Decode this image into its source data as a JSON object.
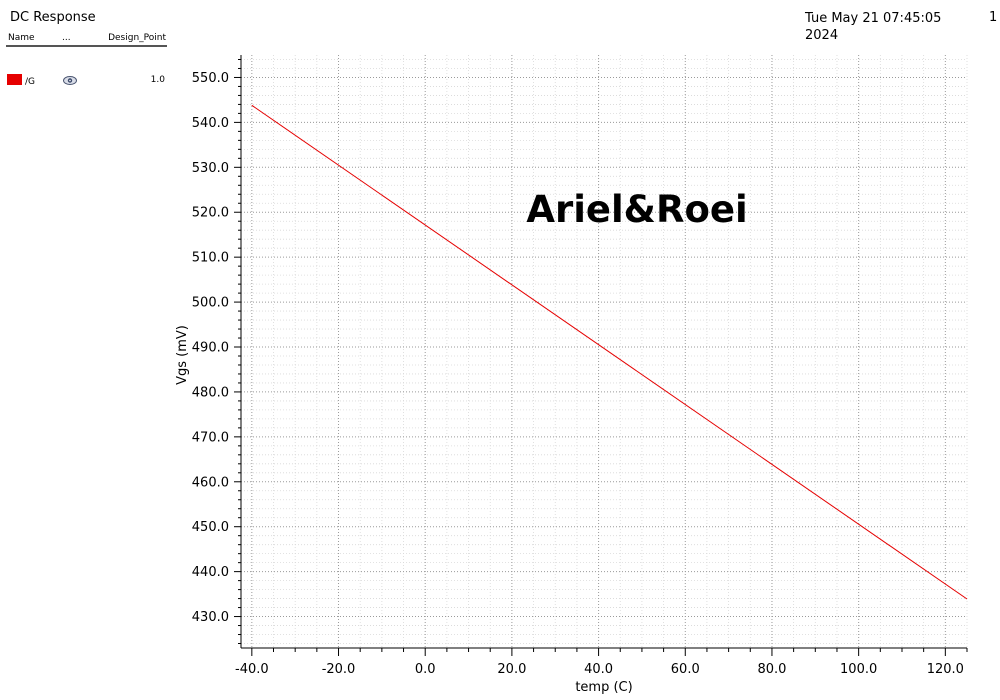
{
  "window": {
    "title": "DC Response",
    "timestamp": "Tue May 21 07:45:05 2024",
    "page": "1"
  },
  "legend": {
    "col_name": "Name",
    "col_more": "...",
    "col_design_point": "Design_Point",
    "rows": [
      {
        "name": "/G",
        "color": "#e60000",
        "visibility_icon": "eye-icon",
        "design_point": "1.0"
      }
    ]
  },
  "chart_data": {
    "type": "line",
    "xlabel": "temp (C)",
    "ylabel": "Vgs (mV)",
    "xlim": [
      -42.5,
      125
    ],
    "ylim": [
      423,
      555
    ],
    "xticks": [
      -40,
      -20,
      0,
      20,
      40,
      60,
      80,
      100,
      120
    ],
    "xtick_labels": [
      "-40.0",
      "-20.0",
      "0.0",
      "20.0",
      "40.0",
      "60.0",
      "80.0",
      "100.0",
      "120.0"
    ],
    "yticks": [
      430,
      440,
      450,
      460,
      470,
      480,
      490,
      500,
      510,
      520,
      530,
      540,
      550
    ],
    "ytick_labels": [
      "430.0",
      "440.0",
      "450.0",
      "460.0",
      "470.0",
      "480.0",
      "490.0",
      "500.0",
      "510.0",
      "520.0",
      "530.0",
      "540.0",
      "550.0"
    ],
    "grid": true,
    "annotation": "Ariel&Roei",
    "series": [
      {
        "name": "/G",
        "color": "#e60000",
        "x": [
          -40,
          125
        ],
        "y": [
          543.8,
          433.9
        ]
      }
    ]
  }
}
